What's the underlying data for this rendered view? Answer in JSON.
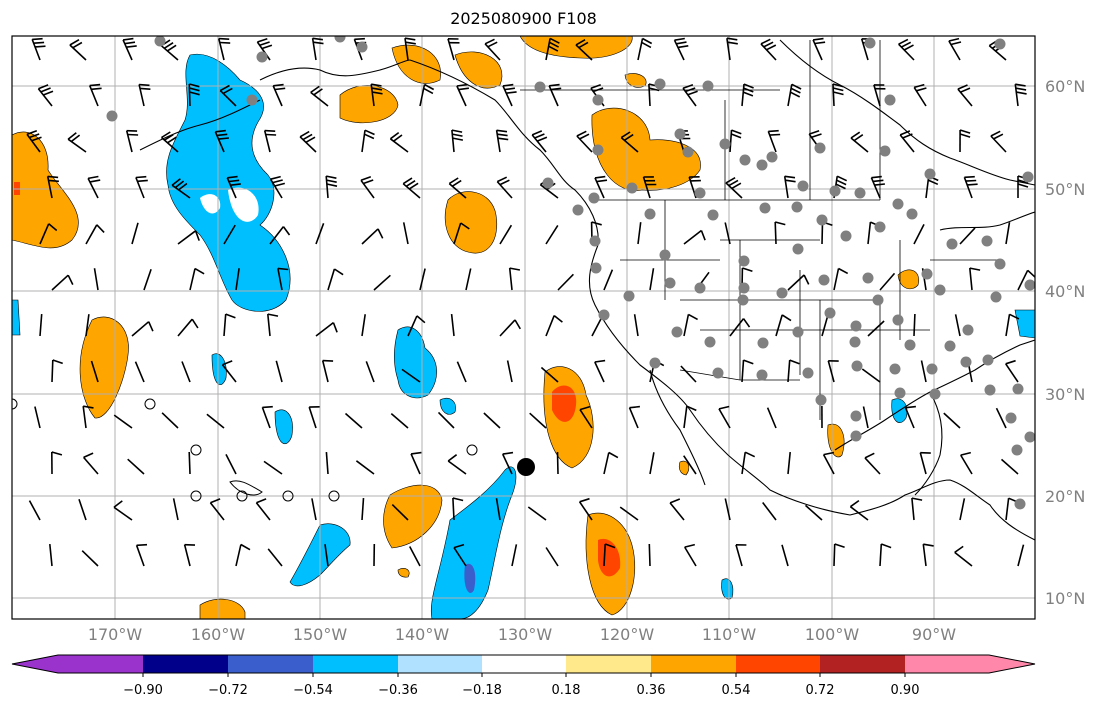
{
  "title": "2025080900 F108",
  "map": {
    "lat_labels": [
      "60°N",
      "50°N",
      "40°N",
      "30°N",
      "20°N",
      "10°N"
    ],
    "lon_labels": [
      "170°W",
      "160°W",
      "150°W",
      "140°W",
      "130°W",
      "120°W",
      "110°W",
      "100°W",
      "90°W"
    ]
  },
  "colorbar": {
    "tick_labels": [
      "−0.90",
      "−0.72",
      "−0.54",
      "−0.36",
      "−0.18",
      "0.18",
      "0.36",
      "0.54",
      "0.72",
      "0.90"
    ],
    "colors": [
      "#9933cc",
      "#00008b",
      "#3a5fcd",
      "#00bfff",
      "#b0e2ff",
      "#ffffff",
      "#ffe98a",
      "#ffa500",
      "#ff4500",
      "#b22222",
      "#ff88aa"
    ]
  }
}
